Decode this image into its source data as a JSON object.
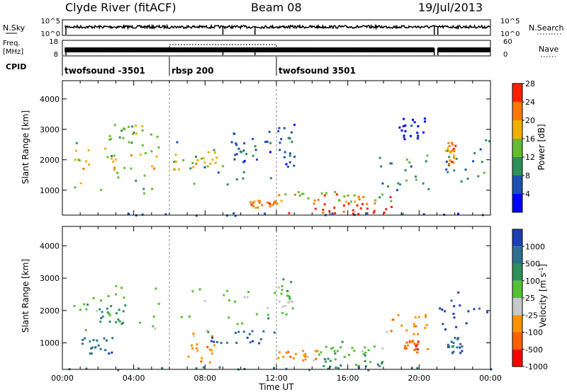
{
  "header": {
    "station": "Clyde River (fitACF)",
    "beam": "Beam 08",
    "date": "19/Jul/2013"
  },
  "params": {
    "nsky_label": "N.Sky",
    "freq_label_line1": "Freq.",
    "freq_label_line2": "[MHz]",
    "cpid_label": "CPID",
    "nsearch_label": "N.Search",
    "nave_label": "Nave",
    "nsky_ticks": [
      "10^5",
      "10^0"
    ],
    "nsearch_ticks": [
      "10^5",
      "10^0"
    ],
    "freq_ticks": [
      "18",
      "8"
    ],
    "nave_ticks": [
      "60",
      "0"
    ],
    "cpid_segments": [
      {
        "start_hour": 0,
        "end_hour": 6.0,
        "label": "twofsound -3501"
      },
      {
        "start_hour": 6.0,
        "end_hour": 12.0,
        "label": "rbsp 200"
      },
      {
        "start_hour": 12.0,
        "end_hour": 24.0,
        "label": "twofsound 3501"
      }
    ],
    "data_gaps_hours": [
      [
        20.85,
        21.05
      ]
    ],
    "dips_hours": [
      0.2,
      9.0,
      10.8,
      20.85,
      21.05
    ]
  },
  "chart_data": [
    {
      "type": "heatmap",
      "name": "power",
      "ylabel": "Slant Range [km]",
      "xlabel": "",
      "xlim": [
        0,
        24
      ],
      "ylim": [
        180,
        4600
      ],
      "yticks": [
        1000,
        2000,
        3000,
        4000
      ],
      "colorbar_label": "Power [dB]",
      "colorbar_ticks": [
        "4",
        "8",
        "12",
        "16",
        "20",
        "24",
        "28"
      ],
      "colors": [
        "#0000ff",
        "#1e4fb4",
        "#2f8f5a",
        "#66bb33",
        "#f0b000",
        "#ff7700",
        "#ff2000"
      ],
      "regions": [
        {
          "t0": 0.6,
          "t1": 5.8,
          "r0": 900,
          "r1": 2900,
          "level": 4
        },
        {
          "t0": 0.6,
          "t1": 5.8,
          "r0": 1600,
          "r1": 2400,
          "level": 5
        },
        {
          "t0": 2.5,
          "t1": 4.6,
          "r0": 2500,
          "r1": 3200,
          "level": 4
        },
        {
          "t0": 6.2,
          "t1": 11.8,
          "r0": 1200,
          "r1": 2700,
          "level": 3
        },
        {
          "t0": 6.2,
          "t1": 9.0,
          "r0": 1700,
          "r1": 2300,
          "level": 5
        },
        {
          "t0": 9.5,
          "t1": 12.0,
          "r0": 1900,
          "r1": 3000,
          "level": 2
        },
        {
          "t0": 10.5,
          "t1": 12.0,
          "r0": 450,
          "r1": 700,
          "level": 6
        },
        {
          "t0": 12.0,
          "t1": 18.5,
          "r0": 250,
          "r1": 900,
          "level": 6
        },
        {
          "t0": 14.0,
          "t1": 18.5,
          "r0": 250,
          "r1": 600,
          "level": 7
        },
        {
          "t0": 12.0,
          "t1": 18.5,
          "r0": 650,
          "r1": 1000,
          "level": 4
        },
        {
          "t0": 12.0,
          "t1": 13.0,
          "r0": 1800,
          "r1": 3400,
          "level": 2
        },
        {
          "t0": 17.5,
          "t1": 20.5,
          "r0": 800,
          "r1": 2200,
          "level": 3
        },
        {
          "t0": 18.8,
          "t1": 20.3,
          "r0": 2700,
          "r1": 3400,
          "level": 1
        },
        {
          "t0": 21.0,
          "t1": 24.0,
          "r0": 1300,
          "r1": 2700,
          "level": 3
        },
        {
          "t0": 21.4,
          "t1": 22.0,
          "r0": 1900,
          "r1": 2600,
          "level": 6
        },
        {
          "t0": 0.0,
          "t1": 24.0,
          "r0": 180,
          "r1": 280,
          "level": 2
        }
      ]
    },
    {
      "type": "heatmap",
      "name": "velocity",
      "ylabel": "Slant Range [km]",
      "xlabel": "Time UT",
      "xlim": [
        0,
        24
      ],
      "ylim": [
        180,
        4600
      ],
      "yticks": [
        1000,
        2000,
        3000,
        4000
      ],
      "xticks": [
        "00:00",
        "04:00",
        "08:00",
        "12:00",
        "16:00",
        "20:00",
        "00:00"
      ],
      "colorbar_label": "Velocity [m s",
      "colorbar_label_sup": "-1",
      "colorbar_label_end": "]",
      "colorbar_ticks": [
        "1000",
        "500",
        "100",
        "25",
        "-25",
        "-100",
        "-500",
        "-1000"
      ],
      "colors": [
        "#1e3fb4",
        "#2f6f8f",
        "#2f8f5a",
        "#55c033",
        "#c8c8c8",
        "#ff9000",
        "#ff6000",
        "#ff0000"
      ],
      "regions": [
        {
          "t0": 0.6,
          "t1": 5.8,
          "r0": 1300,
          "r1": 2900,
          "level": 4
        },
        {
          "t0": 2.0,
          "t1": 3.5,
          "r0": 1600,
          "r1": 2200,
          "level": 3
        },
        {
          "t0": 1.0,
          "t1": 3.0,
          "r0": 700,
          "r1": 1200,
          "level": 2
        },
        {
          "t0": 6.2,
          "t1": 12.0,
          "r0": 1600,
          "r1": 2700,
          "level": 4
        },
        {
          "t0": 7.0,
          "t1": 8.5,
          "r0": 400,
          "r1": 1500,
          "level": 6
        },
        {
          "t0": 8.0,
          "t1": 12.0,
          "r0": 1000,
          "r1": 1400,
          "level": 2
        },
        {
          "t0": 12.0,
          "t1": 14.5,
          "r0": 450,
          "r1": 800,
          "level": 6
        },
        {
          "t0": 14.0,
          "t1": 18.0,
          "r0": 250,
          "r1": 650,
          "level": 3
        },
        {
          "t0": 14.0,
          "t1": 18.0,
          "r0": 650,
          "r1": 1100,
          "level": 4
        },
        {
          "t0": 12.0,
          "t1": 13.0,
          "r0": 1900,
          "r1": 3000,
          "level": 4
        },
        {
          "t0": 18.0,
          "t1": 20.5,
          "r0": 800,
          "r1": 1900,
          "level": 6
        },
        {
          "t0": 19.0,
          "t1": 20.0,
          "r0": 700,
          "r1": 1100,
          "level": 7
        },
        {
          "t0": 21.0,
          "t1": 24.0,
          "r0": 1400,
          "r1": 2600,
          "level": 1
        },
        {
          "t0": 21.5,
          "t1": 22.5,
          "r0": 700,
          "r1": 1200,
          "level": 2
        },
        {
          "t0": 0.0,
          "t1": 24.0,
          "r0": 180,
          "r1": 280,
          "level": 2
        }
      ]
    }
  ]
}
